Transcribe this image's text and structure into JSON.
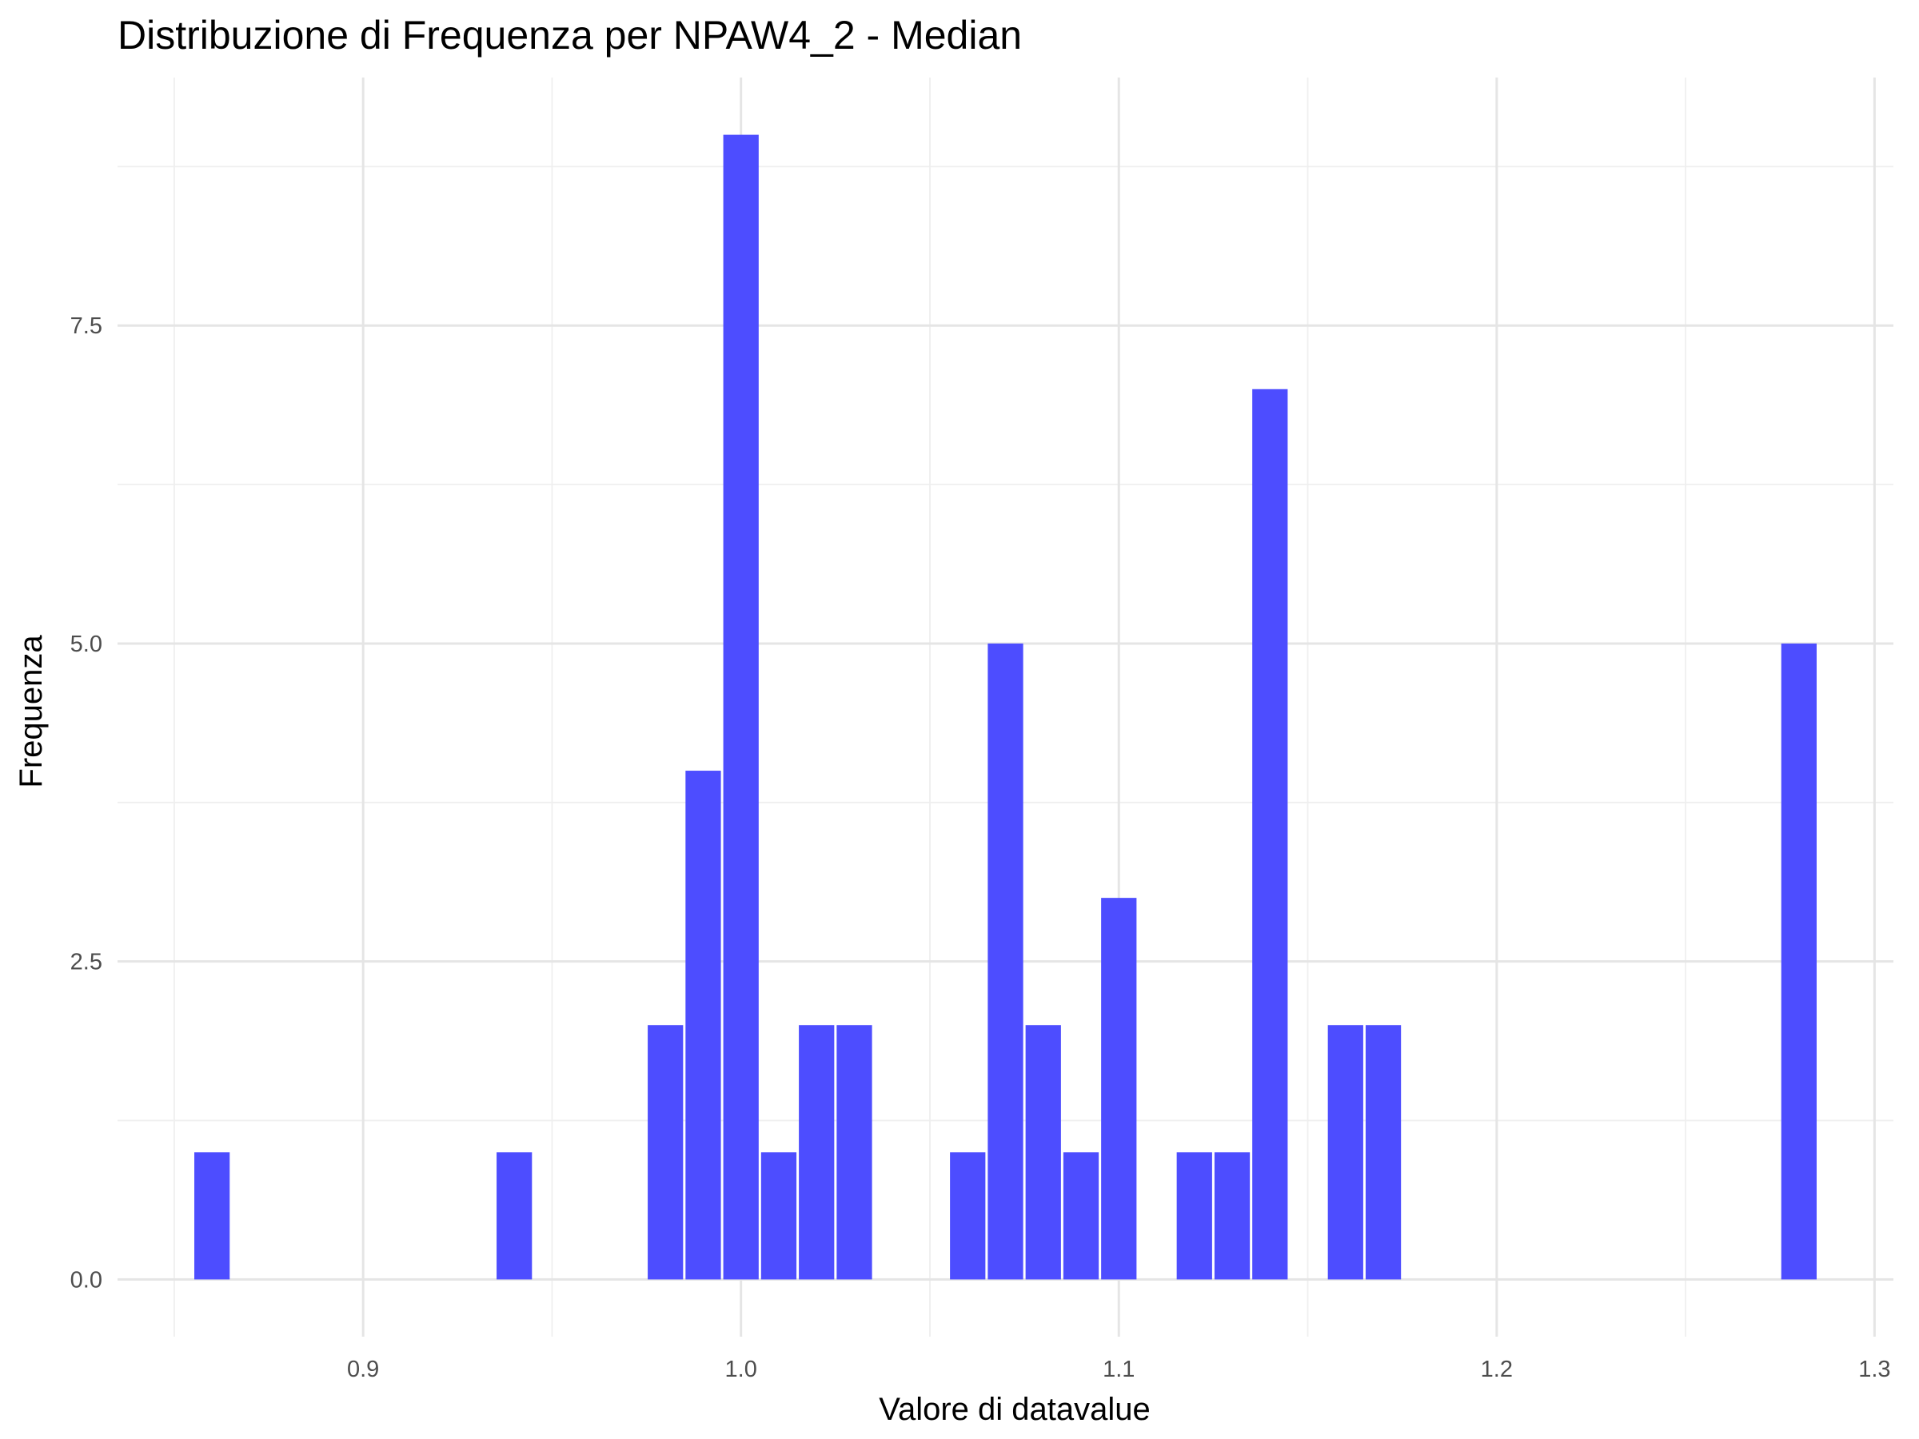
{
  "chart_data": {
    "type": "bar",
    "title": "Distribuzione di Frequenza per NPAW4_2 - Median",
    "xlabel": "Valore di datavalue",
    "ylabel": "Frequenza",
    "xlim": [
      0.835,
      1.305
    ],
    "ylim": [
      -0.45,
      9.45
    ],
    "x_ticks": [
      0.9,
      1.0,
      1.1,
      1.2,
      1.3
    ],
    "x_tick_labels": [
      "0.9",
      "1.0",
      "1.1",
      "1.2",
      "1.3"
    ],
    "y_ticks": [
      0.0,
      2.5,
      5.0,
      7.5
    ],
    "y_tick_labels": [
      "0.0",
      "2.5",
      "5.0",
      "7.5"
    ],
    "bin_width": 0.01,
    "x": [
      0.86,
      0.94,
      0.98,
      0.99,
      1.0,
      1.01,
      1.02,
      1.03,
      1.06,
      1.07,
      1.08,
      1.09,
      1.1,
      1.12,
      1.13,
      1.14,
      1.16,
      1.17,
      1.28
    ],
    "values": [
      1,
      1,
      2,
      4,
      9,
      1,
      2,
      2,
      1,
      5,
      2,
      1,
      3,
      1,
      1,
      7,
      2,
      2,
      5
    ],
    "bar_color": "#4d4dff",
    "grid": true,
    "legend": "none"
  }
}
